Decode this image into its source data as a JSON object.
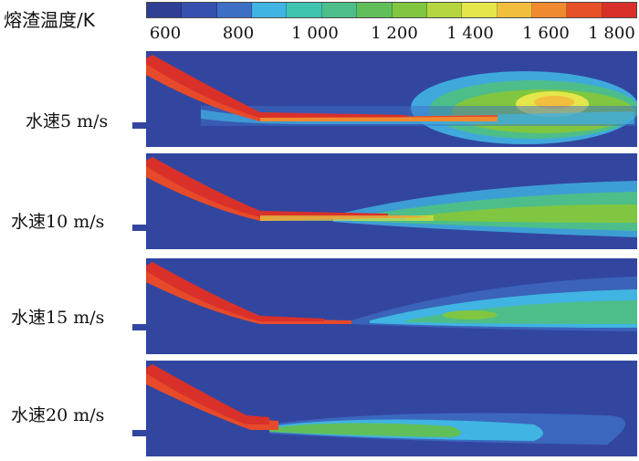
{
  "legend": {
    "title": "熔渣温度/K",
    "ticks": [
      "600",
      "800",
      "1 000",
      "1 200",
      "1 400",
      "1 600",
      "1 800"
    ],
    "colors": [
      "#2f3f96",
      "#3650b0",
      "#3d6fc5",
      "#40b4e2",
      "#3fc4b0",
      "#4dbe8a",
      "#61bf5a",
      "#80c640",
      "#b5d640",
      "#e4e64a",
      "#f2be3e",
      "#f08a30",
      "#e85028",
      "#d9302a"
    ]
  },
  "panels": [
    {
      "label": "水速5 m/s"
    },
    {
      "label": "水速10 m/s"
    },
    {
      "label": "水速15 m/s"
    },
    {
      "label": "水速20 m/s"
    }
  ]
}
